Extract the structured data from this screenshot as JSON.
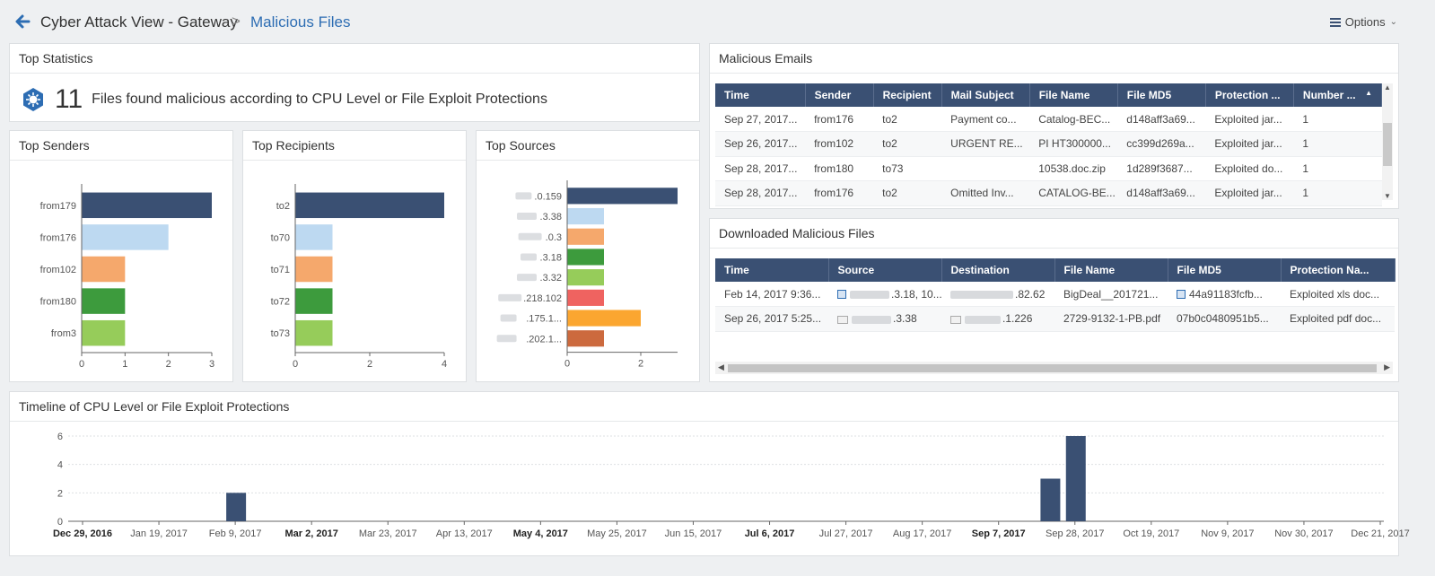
{
  "header": {
    "breadcrumb_root": "Cyber Attack View - Gateway",
    "breadcrumb_sep": ">",
    "breadcrumb_current": "Malicious Files",
    "options_label": "Options",
    "accent_color": "#2d6db3"
  },
  "top_statistics": {
    "title": "Top Statistics",
    "count": "11",
    "description": "Files found malicious according to CPU Level or File Exploit Protections",
    "icon": "virus-icon"
  },
  "top_senders": {
    "title": "Top Senders"
  },
  "top_recipients": {
    "title": "Top Recipients"
  },
  "top_sources": {
    "title": "Top Sources"
  },
  "malicious_emails": {
    "title": "Malicious Emails",
    "columns": [
      "Time",
      "Sender",
      "Recipient",
      "Mail Subject",
      "File Name",
      "File MD5",
      "Protection ...",
      "Number ..."
    ],
    "rows": [
      [
        "Sep 27, 2017...",
        "from176",
        "to2",
        "Payment co...",
        "Catalog-BEC...",
        "d148aff3a69...",
        "Exploited jar...",
        "1"
      ],
      [
        "Sep 26, 2017...",
        "from102",
        "to2",
        "URGENT RE...",
        "PI HT300000...",
        "cc399d269a...",
        "Exploited jar...",
        "1"
      ],
      [
        "Sep 28, 2017...",
        "from180",
        "to73",
        "",
        "10538.doc.zip",
        "1d289f3687...",
        "Exploited do...",
        "1"
      ],
      [
        "Sep 28, 2017...",
        "from176",
        "to2",
        "Omitted Inv...",
        "CATALOG-BE...",
        "d148aff3a69...",
        "Exploited jar...",
        "1"
      ]
    ]
  },
  "downloaded_files": {
    "title": "Downloaded Malicious Files",
    "columns": [
      "Time",
      "Source",
      "Destination",
      "File Name",
      "File MD5",
      "Protection Na..."
    ],
    "rows": [
      {
        "time": "Feb 14, 2017 9:36...",
        "source": ".3.18, 10...",
        "destination": ".82.62",
        "file_name": "BigDeal__201721...",
        "md5": "44a91183fcfb...",
        "protection": "Exploited xls doc..."
      },
      {
        "time": "Sep 26, 2017 5:25...",
        "source": ".3.38",
        "destination": ".1.226",
        "file_name": "2729-9132-1-PB.pdf",
        "md5": "07b0c0480951b5...",
        "protection": "Exploited pdf doc..."
      }
    ]
  },
  "timeline": {
    "title": "Timeline of CPU Level or File Exploit Protections"
  },
  "chart_data": [
    {
      "type": "bar",
      "orientation": "horizontal",
      "title": "Top Senders",
      "categories": [
        "from179",
        "from176",
        "from102",
        "from180",
        "from3"
      ],
      "values": [
        3,
        2,
        1,
        1,
        1
      ],
      "colors": [
        "#3a5073",
        "#bdd9f1",
        "#f5a86c",
        "#3d9b3d",
        "#96cc5a"
      ],
      "xlim": [
        0,
        3
      ],
      "xticks": [
        "0",
        "1",
        "2",
        "3"
      ]
    },
    {
      "type": "bar",
      "orientation": "horizontal",
      "title": "Top Recipients",
      "categories": [
        "to2",
        "to70",
        "to71",
        "to72",
        "to73"
      ],
      "values": [
        4,
        1,
        1,
        1,
        1
      ],
      "colors": [
        "#3a5073",
        "#bdd9f1",
        "#f5a86c",
        "#3d9b3d",
        "#96cc5a"
      ],
      "xlim": [
        0,
        4
      ],
      "xticks": [
        "0",
        "2",
        "4"
      ]
    },
    {
      "type": "bar",
      "orientation": "horizontal",
      "title": "Top Sources",
      "categories": [
        ".0.159",
        ".3.38",
        ".0.3",
        ".3.18",
        ".3.32",
        ".218.102",
        ".175.1...",
        ".202.1..."
      ],
      "values": [
        3,
        1,
        1,
        1,
        1,
        1,
        2,
        1
      ],
      "colors": [
        "#3a5073",
        "#bdd9f1",
        "#f5a86c",
        "#3d9b3d",
        "#96cc5a",
        "#ef6360",
        "#fba630",
        "#cc6a3e"
      ],
      "xlim": [
        0,
        3
      ],
      "xticks": [
        "0",
        "2"
      ]
    },
    {
      "type": "bar",
      "title": "Timeline of CPU Level or File Exploit Protections",
      "x_labels": [
        "Dec 29, 2016",
        "Jan 19, 2017",
        "Feb 9, 2017",
        "Mar 2, 2017",
        "Mar 23, 2017",
        "Apr 13, 2017",
        "May 4, 2017",
        "May 25, 2017",
        "Jun 15, 2017",
        "Jul 6, 2017",
        "Jul 27, 2017",
        "Aug 17, 2017",
        "Sep 7, 2017",
        "Sep 28, 2017",
        "Oct 19, 2017",
        "Nov 9, 2017",
        "Nov 30, 2017",
        "Dec 21, 2017"
      ],
      "bold_labels": [
        "Dec 29, 2016",
        "Mar 2, 2017",
        "May 4, 2017",
        "Jul 6, 2017",
        "Sep 7, 2017"
      ],
      "bars": [
        {
          "week": "Feb 9, 2017",
          "value": 2
        },
        {
          "week": "Sep 21, 2017",
          "value": 3
        },
        {
          "week": "Sep 28, 2017",
          "value": 6
        }
      ],
      "ylim": [
        0,
        6
      ],
      "yticks": [
        "0",
        "2",
        "4",
        "6"
      ],
      "grid": true,
      "bar_color": "#3a5073"
    }
  ]
}
